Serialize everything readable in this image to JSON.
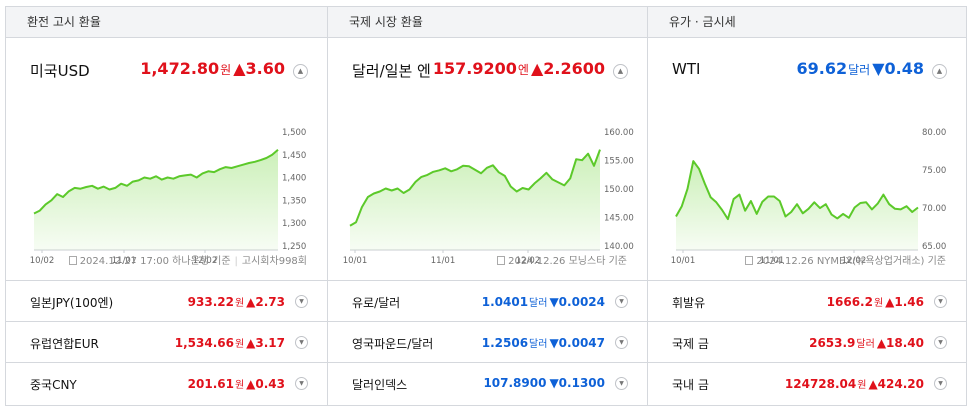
{
  "sections": [
    {
      "header": "환전 고시 환율",
      "main": {
        "name": "미국USD",
        "value": "1,472.80",
        "unit": "원",
        "change": "▲3.60",
        "direction": "up"
      },
      "source": {
        "date": "2024.12.27 17:00",
        "provider": "하나은행 기준",
        "extra": "고시회차998회"
      },
      "rows": [
        {
          "name": "일본JPY(100엔)",
          "value": "933.22",
          "unit": "원",
          "change": "▲2.73",
          "direction": "up"
        },
        {
          "name": "유럽연합EUR",
          "value": "1,534.66",
          "unit": "원",
          "change": "▲3.17",
          "direction": "up"
        },
        {
          "name": "중국CNY",
          "value": "201.61",
          "unit": "원",
          "change": "▲0.43",
          "direction": "up"
        }
      ]
    },
    {
      "header": "국제 시장 환율",
      "main": {
        "name": "달러/일본 엔",
        "value": "157.9200",
        "unit": "엔",
        "change": "▲2.2600",
        "direction": "up"
      },
      "source": {
        "date": "2024.12.26",
        "provider": "모닝스타 기준",
        "extra": ""
      },
      "rows": [
        {
          "name": "유로/달러",
          "value": "1.0401",
          "unit": "달러",
          "change": "▼0.0024",
          "direction": "down"
        },
        {
          "name": "영국파운드/달러",
          "value": "1.2506",
          "unit": "달러",
          "change": "▼0.0047",
          "direction": "down"
        },
        {
          "name": "달러인덱스",
          "value": "107.8900",
          "unit": "",
          "change": "▼0.1300",
          "direction": "down"
        }
      ]
    },
    {
      "header": "유가 · 금시세",
      "main": {
        "name": "WTI",
        "value": "69.62",
        "unit": "달러",
        "change": "▼0.48",
        "direction": "down"
      },
      "source": {
        "date": "2024.12.26",
        "provider": "NYMEX(뉴욕상업거래소) 기준",
        "extra": ""
      },
      "rows": [
        {
          "name": "휘발유",
          "value": "1666.2",
          "unit": "원",
          "change": "▲1.46",
          "direction": "up"
        },
        {
          "name": "국제 금",
          "value": "2653.9",
          "unit": "달러",
          "change": "▲18.40",
          "direction": "up"
        },
        {
          "name": "국내 금",
          "value": "124728.04",
          "unit": "원",
          "change": "▲424.20",
          "direction": "up"
        }
      ]
    }
  ],
  "icons": {
    "toggle": "chevron-icon",
    "source": "document-icon"
  },
  "colors": {
    "up": "#e0111b",
    "down": "#0e61d7",
    "line": "#5cc92a",
    "fill": "#c9efb5"
  },
  "chart_data": [
    {
      "type": "area",
      "x_tick_labels": [
        "10/02",
        "11/01",
        "12/02"
      ],
      "y_tick_labels": [
        "1,500",
        "1,450",
        "1,400",
        "1,350",
        "1,300",
        "1,250"
      ],
      "ylim": [
        1230,
        1510
      ],
      "x": [
        0,
        2,
        4,
        6,
        8,
        10,
        12,
        14,
        16,
        18,
        20,
        22,
        24,
        26,
        28,
        30,
        32,
        34,
        36,
        38,
        40,
        42,
        44,
        46,
        48,
        50,
        52,
        54,
        56,
        58,
        60,
        62,
        64,
        66,
        68,
        70,
        72,
        74,
        76,
        78,
        80,
        82,
        84
      ],
      "values": [
        1318,
        1325,
        1340,
        1350,
        1365,
        1358,
        1372,
        1380,
        1378,
        1382,
        1385,
        1378,
        1383,
        1376,
        1380,
        1390,
        1385,
        1395,
        1398,
        1405,
        1402,
        1408,
        1400,
        1405,
        1402,
        1408,
        1410,
        1412,
        1405,
        1415,
        1420,
        1418,
        1425,
        1430,
        1428,
        1432,
        1436,
        1440,
        1443,
        1447,
        1452,
        1460,
        1472
      ]
    },
    {
      "type": "area",
      "x_tick_labels": [
        "10/01",
        "11/01",
        "12/02"
      ],
      "y_tick_labels": [
        "160.00",
        "155.00",
        "150.00",
        "145.00",
        "140.00"
      ],
      "ylim": [
        138,
        161
      ],
      "x": [
        0,
        2,
        4,
        6,
        8,
        10,
        12,
        14,
        16,
        18,
        20,
        22,
        24,
        26,
        28,
        30,
        32,
        34,
        36,
        38,
        40,
        42,
        44,
        46,
        48,
        50,
        52,
        54,
        56,
        58,
        60,
        62,
        64,
        66,
        68,
        70,
        72,
        74,
        76,
        78,
        80,
        82,
        84
      ],
      "values": [
        142.8,
        143.5,
        146.5,
        148.5,
        149.2,
        149.6,
        150.2,
        149.8,
        150.2,
        149.3,
        150.0,
        151.5,
        152.5,
        152.9,
        153.5,
        153.8,
        154.2,
        153.6,
        154.0,
        154.7,
        154.6,
        153.9,
        153.2,
        154.3,
        154.8,
        153.4,
        152.7,
        150.6,
        149.6,
        150.3,
        150.0,
        151.2,
        152.2,
        153.3,
        152.0,
        151.4,
        150.8,
        152.2,
        156.0,
        155.8,
        157.1,
        154.7,
        157.9
      ]
    },
    {
      "type": "area",
      "x_tick_labels": [
        "10/01",
        "11/01",
        "12/02"
      ],
      "y_tick_labels": [
        "80.00",
        "75.00",
        "70.00",
        "65.00"
      ],
      "ylim": [
        63,
        81
      ],
      "x": [
        0,
        2,
        4,
        6,
        8,
        10,
        12,
        14,
        16,
        18,
        20,
        22,
        24,
        26,
        28,
        30,
        32,
        34,
        36,
        38,
        40,
        42,
        44,
        46,
        48,
        50,
        52,
        54,
        56,
        58,
        60,
        62,
        64,
        66,
        68,
        70,
        72,
        74,
        76,
        78,
        80,
        82,
        84
      ],
      "values": [
        68.2,
        69.8,
        72.5,
        76.8,
        75.6,
        73.3,
        71.2,
        70.4,
        69.2,
        67.8,
        70.9,
        71.6,
        69.1,
        70.6,
        68.6,
        70.5,
        71.3,
        71.3,
        70.6,
        68.2,
        68.9,
        70.1,
        68.7,
        69.4,
        70.4,
        69.5,
        70.1,
        68.5,
        67.9,
        68.6,
        68.0,
        69.6,
        70.3,
        70.4,
        69.3,
        70.2,
        71.6,
        70.1,
        69.4,
        69.3,
        69.8,
        68.9,
        69.6
      ]
    }
  ]
}
